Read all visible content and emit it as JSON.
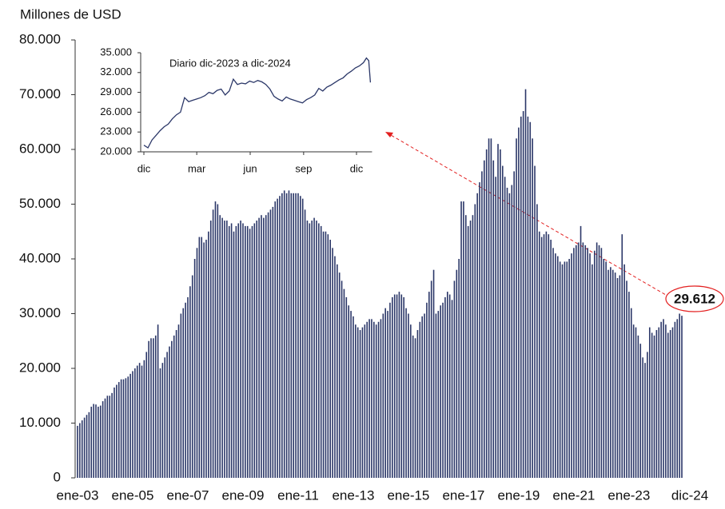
{
  "chart_data": [
    {
      "type": "bar",
      "y_label": "Millones de USD",
      "color": "#2b3768",
      "ylim": [
        0,
        80000
      ],
      "yticks": [
        0,
        {
          "value": 10000,
          "label": "10.000"
        },
        {
          "value": 20000,
          "label": "20.000"
        },
        {
          "value": 30000,
          "label": "30.000"
        },
        {
          "value": 40000,
          "label": "40.000"
        },
        {
          "value": 50000,
          "label": "50.000"
        },
        {
          "value": 60000,
          "label": "60.000"
        },
        {
          "value": 70000,
          "label": "70.000"
        },
        {
          "value": 80000,
          "label": "80.000"
        }
      ],
      "categories": [
        "ene-03",
        null,
        null,
        null,
        null,
        null,
        null,
        null,
        null,
        null,
        null,
        null,
        null,
        null,
        null,
        null,
        null,
        null,
        null,
        null,
        null,
        null,
        null,
        null,
        "ene-05",
        null,
        null,
        null,
        null,
        null,
        null,
        null,
        null,
        null,
        null,
        null,
        null,
        null,
        null,
        null,
        null,
        null,
        null,
        null,
        null,
        null,
        null,
        null,
        "ene-07",
        null,
        null,
        null,
        null,
        null,
        null,
        null,
        null,
        null,
        null,
        null,
        null,
        null,
        null,
        null,
        null,
        null,
        null,
        null,
        null,
        null,
        null,
        null,
        "ene-09",
        null,
        null,
        null,
        null,
        null,
        null,
        null,
        null,
        null,
        null,
        null,
        null,
        null,
        null,
        null,
        null,
        null,
        null,
        null,
        null,
        null,
        null,
        null,
        "ene-11",
        null,
        null,
        null,
        null,
        null,
        null,
        null,
        null,
        null,
        null,
        null,
        null,
        null,
        null,
        null,
        null,
        null,
        null,
        null,
        null,
        null,
        null,
        null,
        "ene-13",
        null,
        null,
        null,
        null,
        null,
        null,
        null,
        null,
        null,
        null,
        null,
        null,
        null,
        null,
        null,
        null,
        null,
        null,
        null,
        null,
        null,
        null,
        null,
        "ene-15",
        null,
        null,
        null,
        null,
        null,
        null,
        null,
        null,
        null,
        null,
        null,
        null,
        null,
        null,
        null,
        null,
        null,
        null,
        null,
        null,
        null,
        null,
        null,
        "ene-17",
        null,
        null,
        null,
        null,
        null,
        null,
        null,
        null,
        null,
        null,
        null,
        null,
        null,
        null,
        null,
        null,
        null,
        null,
        null,
        null,
        null,
        null,
        null,
        "ene-19",
        null,
        null,
        null,
        null,
        null,
        null,
        null,
        null,
        null,
        null,
        null,
        null,
        null,
        null,
        null,
        null,
        null,
        null,
        null,
        null,
        null,
        null,
        null,
        "ene-21",
        null,
        null,
        null,
        null,
        null,
        null,
        null,
        null,
        null,
        null,
        null,
        null,
        null,
        null,
        null,
        null,
        null,
        null,
        null,
        null,
        null,
        null,
        null,
        "ene-23",
        null,
        null,
        null,
        null,
        null,
        null,
        null,
        null,
        null,
        null,
        null,
        null,
        null,
        null,
        null,
        null,
        null,
        null,
        null,
        null,
        null,
        null,
        "dic-24"
      ],
      "values": [
        9500,
        10000,
        10500,
        11000,
        11500,
        12000,
        13000,
        13500,
        13400,
        13000,
        13200,
        14000,
        14500,
        15000,
        15000,
        15500,
        16500,
        17000,
        17500,
        18000,
        18000,
        18200,
        18500,
        19000,
        19500,
        20000,
        20500,
        21000,
        20500,
        21500,
        23000,
        25000,
        25500,
        25500,
        26000,
        28000,
        20000,
        21000,
        22000,
        23000,
        24000,
        25000,
        26000,
        27000,
        28000,
        30000,
        31000,
        32000,
        33000,
        35000,
        37000,
        40000,
        42000,
        44000,
        44000,
        43000,
        43500,
        45000,
        47000,
        49000,
        50500,
        50000,
        48000,
        47500,
        47000,
        47000,
        46000,
        46500,
        45000,
        46000,
        46500,
        47000,
        46500,
        46000,
        46000,
        45500,
        46000,
        46500,
        47000,
        47500,
        48000,
        47500,
        48000,
        48500,
        49000,
        49500,
        50500,
        51000,
        51500,
        52000,
        52500,
        52000,
        52500,
        52000,
        52000,
        52000,
        52000,
        51500,
        51000,
        49000,
        47000,
        46500,
        47000,
        47500,
        47000,
        46500,
        46000,
        45000,
        45000,
        44500,
        43500,
        42000,
        40500,
        39000,
        37500,
        36000,
        34500,
        33000,
        31500,
        30500,
        29500,
        28000,
        27500,
        27000,
        27500,
        28000,
        28500,
        29000,
        29000,
        28500,
        28000,
        28500,
        29000,
        30000,
        31000,
        30500,
        32000,
        33000,
        33500,
        33500,
        34000,
        33500,
        33000,
        31000,
        30000,
        28000,
        26000,
        25500,
        27000,
        28500,
        29500,
        30000,
        32000,
        34000,
        36000,
        38000,
        30000,
        30500,
        31500,
        32000,
        33000,
        34000,
        33500,
        32500,
        36000,
        38000,
        40000,
        50500,
        50500,
        48000,
        46000,
        47000,
        48000,
        50000,
        52000,
        54000,
        56000,
        58000,
        60000,
        62000,
        62000,
        58000,
        55000,
        61000,
        60000,
        57000,
        55000,
        53000,
        52000,
        53500,
        56000,
        62000,
        64000,
        66000,
        67000,
        71000,
        66000,
        65000,
        62000,
        57000,
        50000,
        45000,
        44000,
        44500,
        45000,
        44500,
        43500,
        42000,
        41000,
        40500,
        39500,
        39000,
        39500,
        39500,
        40000,
        41000,
        42000,
        42500,
        43000,
        46000,
        43000,
        42500,
        42000,
        41000,
        39000,
        41500,
        43000,
        42500,
        42000,
        40000,
        39500,
        38000,
        38500,
        38000,
        37500,
        36500,
        37000,
        44500,
        39000,
        36000,
        34000,
        31000,
        28000,
        27500,
        26000,
        24500,
        22000,
        21000,
        23000,
        27500,
        26500,
        26000,
        27000,
        27500,
        28500,
        29000,
        28000,
        26500,
        27000,
        27500,
        28500,
        29000,
        30000,
        29612
      ],
      "value_labels": [
        null,
        null,
        null,
        null,
        null,
        null,
        null,
        null,
        null,
        null,
        null,
        null,
        null,
        null,
        null,
        null,
        null,
        null,
        null,
        null,
        null,
        null,
        null,
        null,
        null,
        null,
        null,
        null,
        null,
        null,
        null,
        null,
        null,
        null,
        null,
        null,
        null,
        null,
        null,
        null,
        null,
        null,
        null,
        null,
        null,
        null,
        null,
        null,
        null,
        null,
        null,
        null,
        null,
        null,
        null,
        null,
        null,
        null,
        null,
        null,
        null,
        null,
        null,
        null,
        null,
        null,
        null,
        null,
        null,
        null,
        null,
        null,
        null,
        null,
        null,
        null,
        null,
        null,
        null,
        null,
        null,
        null,
        null,
        null,
        null,
        null,
        null,
        null,
        null,
        null,
        null,
        null,
        null,
        null,
        null,
        null,
        null,
        null,
        null,
        null,
        null,
        null,
        null,
        null,
        null,
        null,
        null,
        null,
        null,
        null,
        null,
        null,
        null,
        null,
        null,
        null,
        null,
        null,
        null,
        null,
        null,
        null,
        null,
        null,
        null,
        null,
        null,
        null,
        null,
        null,
        null,
        null,
        null,
        null,
        null,
        null,
        null,
        null,
        null,
        null,
        null,
        null,
        null,
        null,
        null,
        null,
        null,
        null,
        null,
        null,
        null,
        null,
        null,
        null,
        null,
        null,
        null,
        null,
        null,
        null,
        null,
        null,
        null,
        null,
        null,
        null,
        null,
        null,
        null,
        null,
        null,
        null,
        null,
        null,
        null,
        null,
        null,
        null,
        null,
        null,
        null,
        null,
        null,
        null,
        null,
        null,
        null,
        null,
        null,
        null,
        null,
        null,
        null,
        null,
        null,
        null,
        null,
        null,
        null,
        null,
        null,
        null,
        null,
        null,
        null,
        null,
        null,
        null,
        null,
        null,
        null,
        null,
        null,
        null,
        null,
        null,
        null,
        null,
        null,
        null,
        null,
        null,
        null,
        null,
        null,
        null,
        null,
        null,
        null,
        null,
        null,
        null,
        null,
        null,
        null,
        null,
        null,
        null,
        null,
        null,
        null,
        null,
        null,
        null,
        null,
        null,
        null,
        null,
        null,
        null,
        null,
        null,
        null,
        null,
        null,
        null,
        null,
        null,
        null,
        null,
        null,
        null,
        null,
        "29.612"
      ]
    },
    {
      "type": "line",
      "title": "Diario dic-2023 a dic-2024",
      "color": "#2b3768",
      "xlim": [
        0,
        390
      ],
      "xticks": [
        {
          "value": 0,
          "label": "dic"
        },
        {
          "value": 91,
          "label": "mar"
        },
        {
          "value": 183,
          "label": "jun"
        },
        {
          "value": 275,
          "label": "sep"
        },
        {
          "value": 366,
          "label": "dic"
        }
      ],
      "ylim": [
        20000,
        35000
      ],
      "yticks": [
        {
          "value": 20000,
          "label": "20.000"
        },
        {
          "value": 23000,
          "label": "23.000"
        },
        {
          "value": 26000,
          "label": "26.000"
        },
        {
          "value": 29000,
          "label": "29.000"
        },
        {
          "value": 32000,
          "label": "32.000"
        },
        {
          "value": 35000,
          "label": "35.000"
        }
      ],
      "x": [
        0,
        7,
        14,
        21,
        28,
        35,
        42,
        49,
        56,
        63,
        70,
        77,
        84,
        91,
        98,
        105,
        112,
        119,
        126,
        133,
        140,
        147,
        154,
        161,
        168,
        175,
        182,
        189,
        196,
        203,
        210,
        217,
        224,
        231,
        238,
        245,
        252,
        259,
        266,
        273,
        280,
        287,
        294,
        301,
        308,
        315,
        322,
        329,
        336,
        343,
        350,
        357,
        364,
        371,
        378,
        383,
        387,
        390
      ],
      "values": [
        21000,
        20600,
        21800,
        22500,
        23200,
        23800,
        24200,
        25000,
        25600,
        26000,
        28200,
        27600,
        27800,
        28000,
        28200,
        28500,
        29000,
        28800,
        29300,
        29500,
        28600,
        29200,
        31000,
        30200,
        30400,
        30300,
        30700,
        30500,
        30800,
        30600,
        30200,
        29500,
        28400,
        28000,
        27700,
        28300,
        28000,
        27800,
        27600,
        27400,
        27900,
        28200,
        28600,
        29600,
        29200,
        29800,
        30100,
        30500,
        30900,
        31200,
        31800,
        32200,
        32700,
        33000,
        33500,
        34200,
        33800,
        30500
      ]
    }
  ]
}
